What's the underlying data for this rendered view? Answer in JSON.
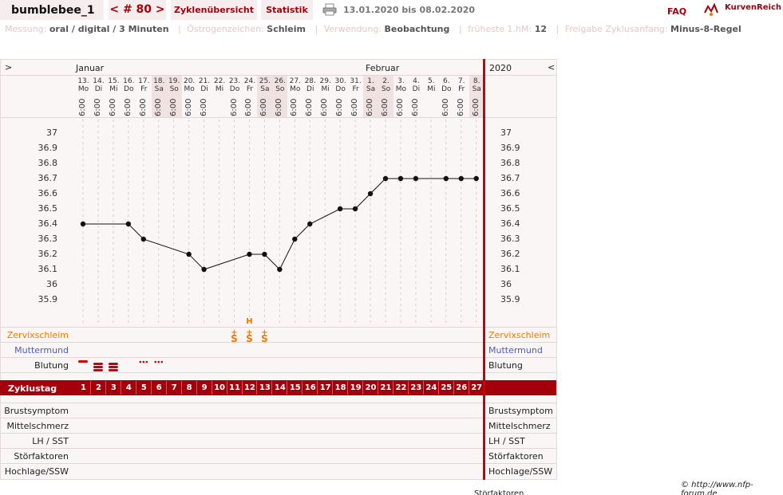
{
  "header": {
    "username": "bumblebee_1",
    "cycle_nav_prev": "<",
    "cycle_number": "# 80",
    "cycle_nav_next": ">",
    "tab_overview": "Zyklenübersicht",
    "tab_stats": "Statistik",
    "date_range": "13.01.2020 bis 08.02.2020",
    "faq": "FAQ",
    "logo_text": "KurvenReich"
  },
  "meta": {
    "measurement_label": "Messung:",
    "measurement_value": "oral / digital / 3 Minuten",
    "estrogen_label": "Östrogenzeichen:",
    "estrogen_value": "Schleim",
    "usage_label": "Verwendung:",
    "usage_value": "Beobachtung",
    "earliest_label": "früheste 1.hM:",
    "earliest_value": "12",
    "release_label": "Freigabe Zyklusanfang:",
    "release_value": "Minus-8-Regel"
  },
  "chart_nav": {
    "left_arrow": ">",
    "right_arrow": "<",
    "year": "2020",
    "months": [
      "Januar",
      "Februar"
    ]
  },
  "days": [
    {
      "d": "13.",
      "w": "Mo",
      "t": "6:00"
    },
    {
      "d": "14.",
      "w": "Di",
      "t": "6:00"
    },
    {
      "d": "15.",
      "w": "Mi",
      "t": "6:00"
    },
    {
      "d": "16.",
      "w": "Do",
      "t": "6:00"
    },
    {
      "d": "17.",
      "w": "Fr",
      "t": "6:00"
    },
    {
      "d": "18.",
      "w": "Sa",
      "t": "6:00"
    },
    {
      "d": "19.",
      "w": "So",
      "t": "6:00"
    },
    {
      "d": "20.",
      "w": "Mo",
      "t": "6:00"
    },
    {
      "d": "21.",
      "w": "Di",
      "t": "6:00"
    },
    {
      "d": "22.",
      "w": "Mi",
      "t": ""
    },
    {
      "d": "23.",
      "w": "Do",
      "t": "6:00"
    },
    {
      "d": "24.",
      "w": "Fr",
      "t": "6:00"
    },
    {
      "d": "25.",
      "w": "Sa",
      "t": "6:00"
    },
    {
      "d": "26.",
      "w": "So",
      "t": "6:00"
    },
    {
      "d": "27.",
      "w": "Mo",
      "t": "6:00"
    },
    {
      "d": "28.",
      "w": "Di",
      "t": "6:00"
    },
    {
      "d": "29.",
      "w": "Mi",
      "t": "6:00"
    },
    {
      "d": "30.",
      "w": "Do",
      "t": "6:00"
    },
    {
      "d": "31.",
      "w": "Fr",
      "t": "6:00"
    },
    {
      "d": "1.",
      "w": "Sa",
      "t": "6:00"
    },
    {
      "d": "2.",
      "w": "So",
      "t": "6:00"
    },
    {
      "d": "3.",
      "w": "Mo",
      "t": "6:00"
    },
    {
      "d": "4.",
      "w": "Di",
      "t": "6:00"
    },
    {
      "d": "5.",
      "w": "Mi",
      "t": ""
    },
    {
      "d": "6.",
      "w": "Do",
      "t": "6:00"
    },
    {
      "d": "7.",
      "w": "Fr",
      "t": "6:00"
    },
    {
      "d": "8.",
      "w": "Sa",
      "t": "6:00"
    }
  ],
  "weekend_days": [
    "18.",
    "19.",
    "25.",
    "26.",
    "1.",
    "2.",
    "8."
  ],
  "temp_axis_ticks": [
    "37",
    "36.9",
    "36.8",
    "36.7",
    "36.6",
    "36.5",
    "36.4",
    "36.3",
    "36.2",
    "36.1",
    "36",
    "35.9"
  ],
  "chart_data": {
    "type": "line",
    "x": [
      1,
      2,
      3,
      4,
      5,
      6,
      7,
      8,
      9,
      10,
      11,
      12,
      13,
      14,
      15,
      16,
      17,
      18,
      19,
      20,
      21,
      22,
      23,
      24,
      25,
      26,
      27
    ],
    "series": [
      {
        "values": [
          36.4,
          null,
          null,
          36.4,
          36.3,
          null,
          null,
          36.2,
          36.1,
          null,
          null,
          36.2,
          36.2,
          36.1,
          36.3,
          36.4,
          null,
          36.5,
          36.5,
          36.6,
          36.7,
          36.7,
          36.7,
          null,
          36.7,
          36.7,
          36.7
        ]
      }
    ],
    "ylim": [
      35.9,
      37
    ],
    "grid": true
  },
  "symptom_rows": {
    "cervix": "Zervixschleim",
    "os": "Muttermund",
    "bleeding": "Blutung"
  },
  "cervix_marks": [
    {
      "day": 11,
      "label": "S",
      "plus": "+"
    },
    {
      "day": 12,
      "label": "S",
      "plus": "+",
      "peak": "H"
    },
    {
      "day": 13,
      "label": "S",
      "plus": "+"
    }
  ],
  "bleeding_marks": [
    {
      "day": 1,
      "kind": "light-bar"
    },
    {
      "day": 2,
      "kind": "heavy"
    },
    {
      "day": 3,
      "kind": "heavy"
    },
    {
      "day": 5,
      "kind": "spotting"
    },
    {
      "day": 6,
      "kind": "spotting"
    }
  ],
  "zyklustag": {
    "label": "Zyklustag",
    "days": [
      "1",
      "2",
      "3",
      "4",
      "5",
      "6",
      "7",
      "8",
      "9",
      "10",
      "11",
      "12",
      "13",
      "14",
      "15",
      "16",
      "17",
      "18",
      "19",
      "20",
      "21",
      "22",
      "23",
      "24",
      "25",
      "26",
      "27"
    ]
  },
  "bottom_rows": [
    "Brustsymptom",
    "Mittelschmerz",
    "LH / SST",
    "Störfaktoren",
    "Hochlage/SSW"
  ],
  "copyright": "© http://www.nfp-forum.de",
  "bottom_cut_text": "Störfaktoren",
  "colors": {
    "brand": "#a4000b",
    "cervix": "#f07800",
    "os": "#4a5bc4",
    "bleeding": "#c8000a"
  }
}
